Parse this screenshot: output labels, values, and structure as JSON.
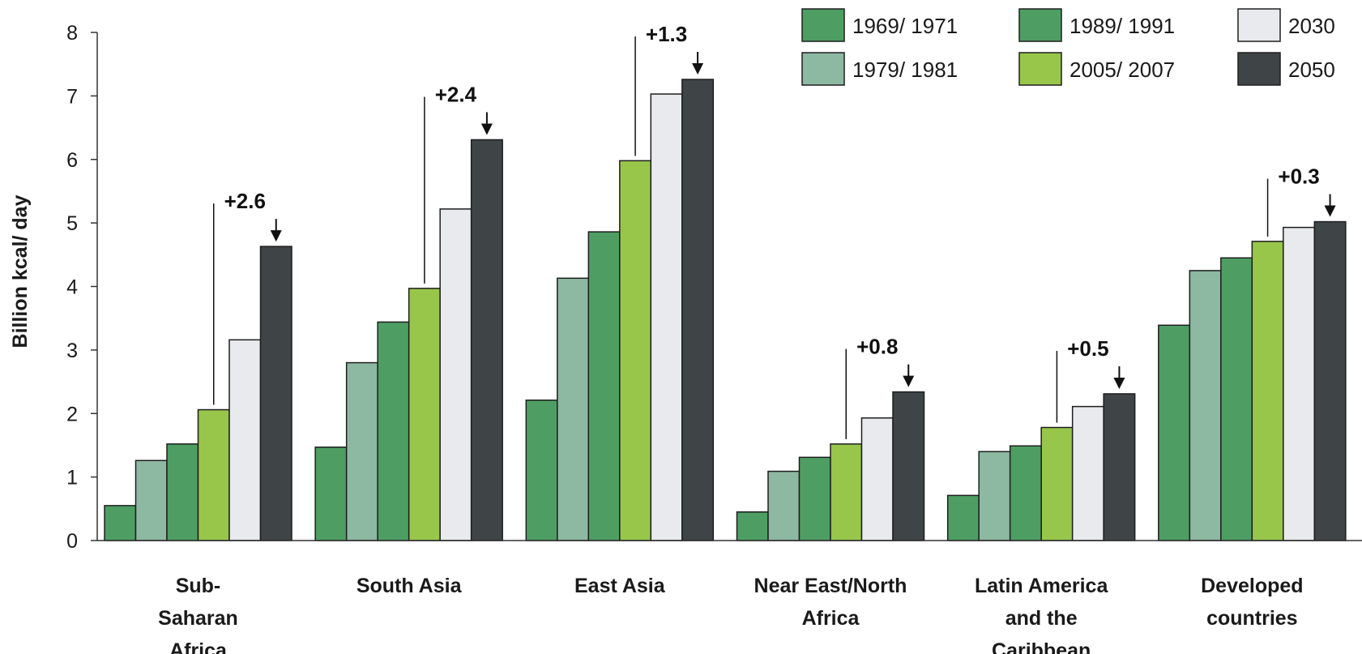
{
  "chart_data": {
    "type": "bar",
    "title": "",
    "xlabel": "",
    "ylabel": "Billion kcal/ day",
    "ylim": [
      0,
      8
    ],
    "yticks": [
      0,
      1,
      2,
      3,
      4,
      5,
      6,
      7,
      8
    ],
    "grid": false,
    "legend_position": "top-right",
    "categories": [
      [
        "Sub-",
        "Saharan",
        "Africa"
      ],
      [
        "South Asia"
      ],
      [
        "East Asia"
      ],
      [
        "Near East/North",
        "Africa"
      ],
      [
        "Latin America",
        "and the",
        "Caribbean"
      ],
      [
        "Developed",
        "countries"
      ]
    ],
    "series": [
      {
        "name": "1969/ 1971",
        "color": "#4e9e63",
        "values": [
          0.55,
          1.47,
          2.21,
          0.45,
          0.71,
          3.39
        ]
      },
      {
        "name": "1979/ 1981",
        "color": "#8db8a2",
        "values": [
          1.26,
          2.8,
          4.13,
          1.09,
          1.4,
          4.25
        ]
      },
      {
        "name": "1989/ 1991",
        "color": "#4e9e63",
        "values": [
          1.52,
          3.44,
          4.86,
          1.31,
          1.49,
          4.45
        ]
      },
      {
        "name": "2005/ 2007",
        "color": "#98c64b",
        "values": [
          2.06,
          3.97,
          5.98,
          1.52,
          1.78,
          4.71
        ]
      },
      {
        "name": "2030",
        "color": "#e8eaed",
        "values": [
          3.16,
          5.22,
          7.03,
          1.93,
          2.11,
          4.93
        ]
      },
      {
        "name": "2050",
        "color": "#3f4446",
        "values": [
          4.63,
          6.31,
          7.26,
          2.34,
          2.31,
          5.02
        ]
      }
    ],
    "annotations": [
      {
        "category": 0,
        "label": "+2.6"
      },
      {
        "category": 1,
        "label": "+2.4"
      },
      {
        "category": 2,
        "label": "+1.3"
      },
      {
        "category": 3,
        "label": "+0.8"
      },
      {
        "category": 4,
        "label": "+0.5"
      },
      {
        "category": 5,
        "label": "+0.3"
      }
    ]
  }
}
